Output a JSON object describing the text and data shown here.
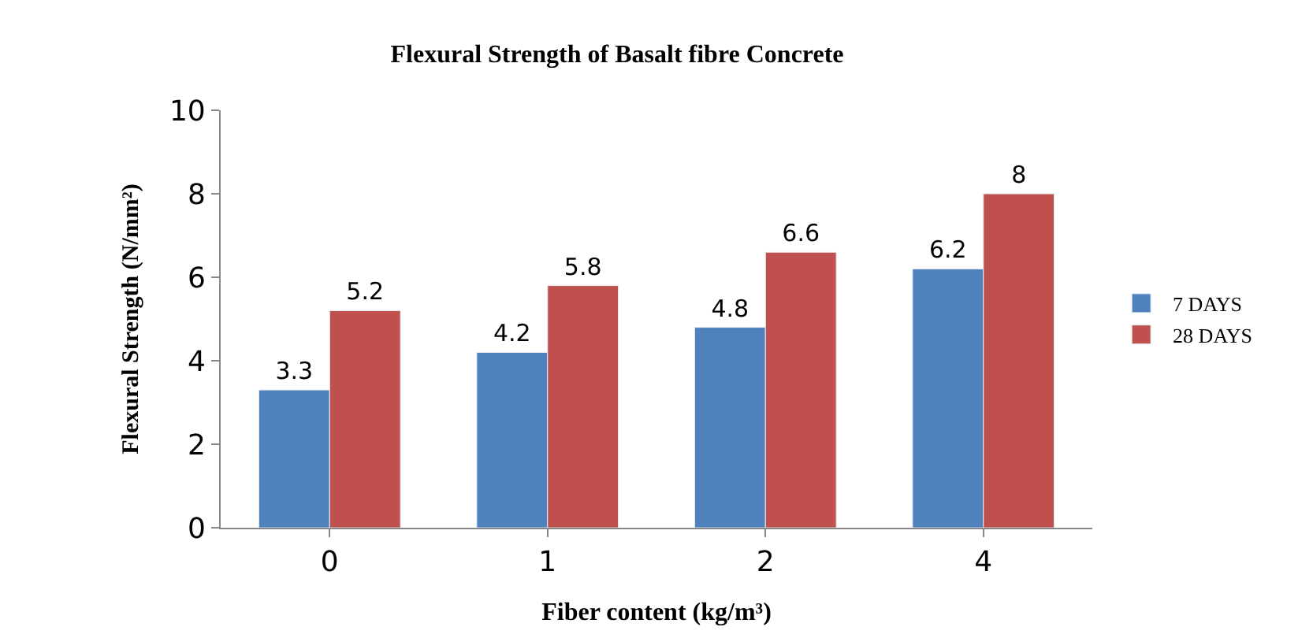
{
  "chart_data": {
    "type": "bar",
    "title": "Flexural Strength of Basalt fibre Concrete",
    "xlabel": "Fiber content (kg/m³)",
    "ylabel": "Flexural Strength (N/mm²)",
    "categories": [
      "0",
      "1",
      "2",
      "4"
    ],
    "series": [
      {
        "name": "7 DAYS",
        "color": "#4f81bd",
        "values": [
          3.3,
          4.2,
          4.8,
          6.2
        ]
      },
      {
        "name": "28 DAYS",
        "color": "#c0504d",
        "values": [
          5.2,
          5.8,
          6.6,
          8
        ]
      }
    ],
    "ylim": [
      0,
      10
    ],
    "yticks": [
      0,
      2,
      4,
      6,
      8,
      10
    ],
    "legend": "right",
    "data_labels": true
  }
}
